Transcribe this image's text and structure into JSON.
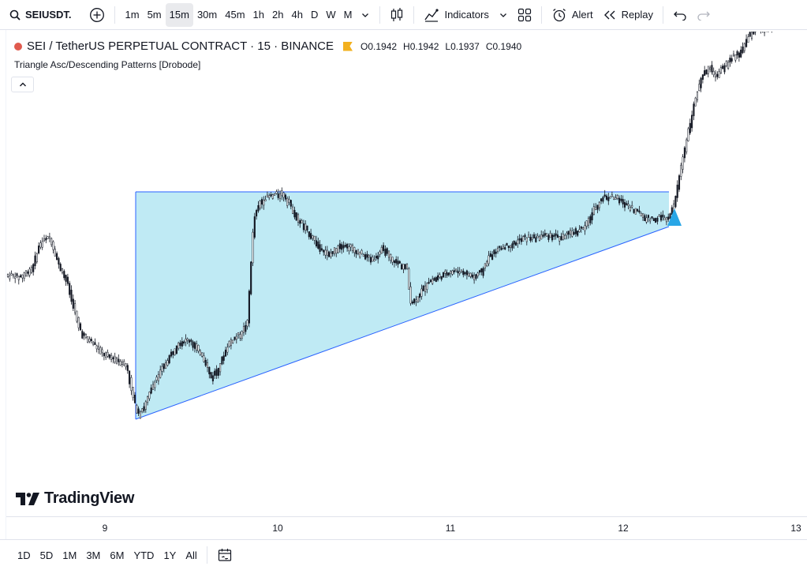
{
  "toolbar": {
    "symbol": "SEIUSDT.",
    "intervals": [
      "1m",
      "5m",
      "15m",
      "30m",
      "45m",
      "1h",
      "2h",
      "4h",
      "D",
      "W",
      "M"
    ],
    "active_interval": "15m",
    "indicators_label": "Indicators",
    "alert_label": "Alert",
    "replay_label": "Replay"
  },
  "legend": {
    "title": "SEI / TetherUS PERPETUAL CONTRACT · 15 · BINANCE",
    "open": "O0.1942",
    "high": "H0.1942",
    "low": "L0.1937",
    "close": "C0.1940"
  },
  "indicator": {
    "name": "Triangle Asc/Descending Patterns [Drobode]"
  },
  "logo": {
    "text": "TradingView"
  },
  "time_axis": {
    "labels": [
      "9",
      "10",
      "11",
      "12",
      "13"
    ]
  },
  "bottom_bar": {
    "ranges": [
      "1D",
      "5D",
      "1M",
      "3M",
      "6M",
      "YTD",
      "1Y",
      "All"
    ]
  },
  "colors": {
    "triangle_fill": "#bfeaf4",
    "triangle_line": "#2962ff",
    "signal": "#29a6e6",
    "candle": "#131722"
  },
  "chart_data": {
    "type": "candlestick",
    "symbol": "SEIUSDT",
    "x_labels": [
      "9",
      "10",
      "11",
      "12",
      "13"
    ],
    "pattern": "Ascending triangle",
    "breakout_signal": "up"
  }
}
